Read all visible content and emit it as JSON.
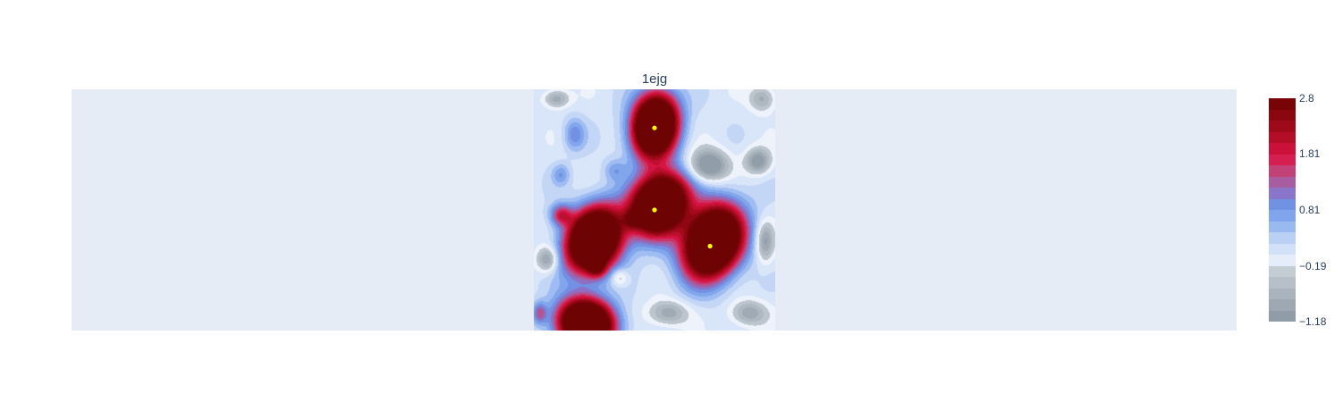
{
  "chart_data": {
    "type": "heatmap",
    "title": "1ejg",
    "plot_background": "#e5ecf6",
    "colorbar": {
      "min": -1.18,
      "max": 2.8,
      "ticks": [
        {
          "value": 2.8,
          "label": "2.8"
        },
        {
          "value": 1.81,
          "label": "1.81"
        },
        {
          "value": 0.81,
          "label": "0.81"
        },
        {
          "value": -0.19,
          "label": "−0.19"
        },
        {
          "value": -1.18,
          "label": "−1.18"
        }
      ],
      "colorscale": [
        [
          0.0,
          "#8a96a3"
        ],
        [
          0.12,
          "#a9b3bd"
        ],
        [
          0.24,
          "#c8d0d7"
        ],
        [
          0.25,
          "#eef3fb"
        ],
        [
          0.36,
          "#c5d7f6"
        ],
        [
          0.44,
          "#8fb2f0"
        ],
        [
          0.52,
          "#6f95e6"
        ],
        [
          0.58,
          "#8b72c7"
        ],
        [
          0.66,
          "#bc4d82"
        ],
        [
          0.74,
          "#dc1446"
        ],
        [
          0.85,
          "#a80b1e"
        ],
        [
          1.0,
          "#6e0303"
        ]
      ]
    },
    "atoms": [
      {
        "x": 0.5,
        "y": 0.16
      },
      {
        "x": 0.5,
        "y": 0.5
      },
      {
        "x": 0.73,
        "y": 0.65
      }
    ],
    "marker_color": "#ffff00"
  }
}
